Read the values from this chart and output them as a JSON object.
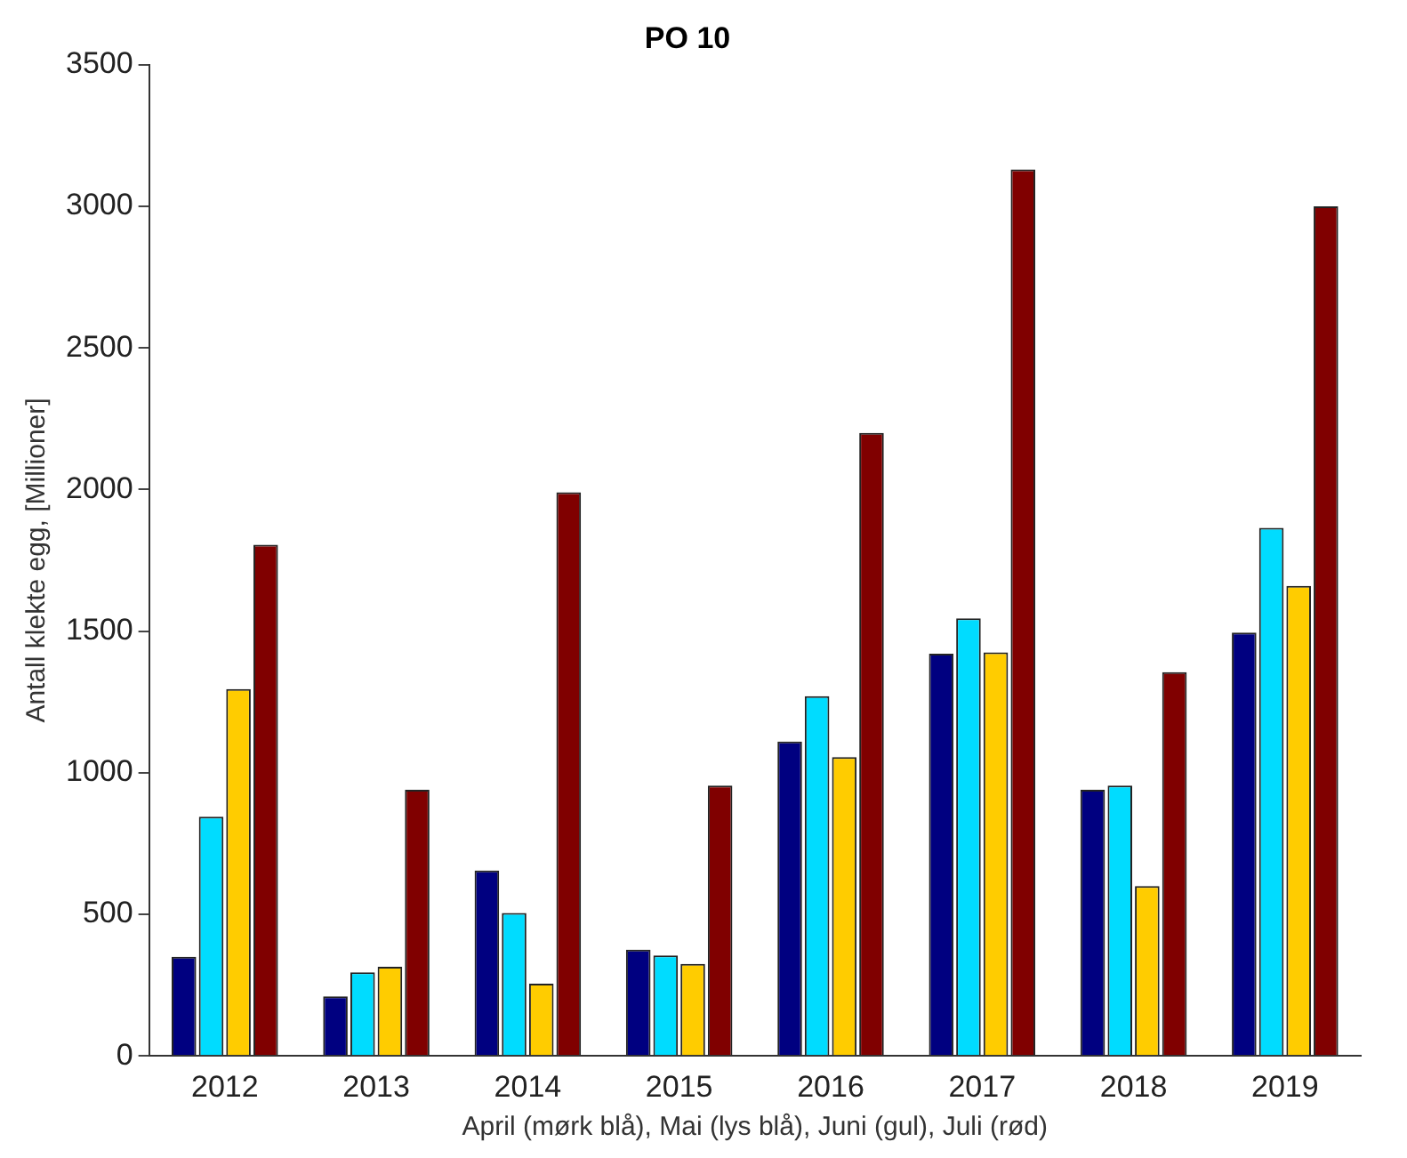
{
  "chart_data": {
    "type": "bar",
    "title": "PO 10",
    "xlabel": "April (mørk blå), Mai (lys blå), Juni (gul), Juli (rød)",
    "ylabel": "Antall klekte egg, [Millioner]",
    "categories": [
      "2012",
      "2013",
      "2014",
      "2015",
      "2016",
      "2017",
      "2018",
      "2019"
    ],
    "series": [
      {
        "color": "#000080",
        "values": [
          350,
          210,
          655,
          375,
          1110,
          1420,
          940,
          1495
        ]
      },
      {
        "color": "#00dcff",
        "values": [
          845,
          295,
          505,
          355,
          1270,
          1545,
          955,
          1865
        ]
      },
      {
        "color": "#ffcc00",
        "values": [
          1295,
          315,
          255,
          325,
          1055,
          1425,
          600,
          1660
        ]
      },
      {
        "color": "#800000",
        "values": [
          1805,
          940,
          1990,
          955,
          2200,
          3130,
          1355,
          3000
        ]
      }
    ],
    "ylim": [
      0,
      3500
    ],
    "yticks": [
      0,
      500,
      1000,
      1500,
      2000,
      2500,
      3000,
      3500
    ],
    "grid": false,
    "legend": false
  }
}
